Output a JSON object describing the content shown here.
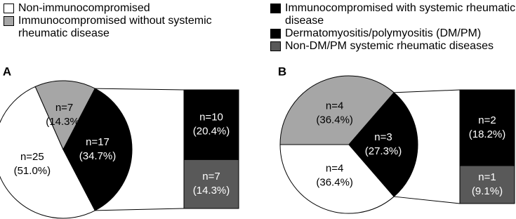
{
  "legend": [
    {
      "name": "Non-immunocompromised",
      "color": "#ffffff"
    },
    {
      "name": "Immunocompromised without systemic rheumatic disease",
      "color": "#a6a6a6"
    },
    {
      "name": "Immunocompromised with systemic rheumatic disease",
      "color": "#000000"
    },
    {
      "name": "Dermatomyositis/polymyositis (DM/PM)",
      "color": "#000000"
    },
    {
      "name": "Non-DM/PM systemic rheumatic diseases",
      "color": "#595959"
    }
  ],
  "chart_data": [
    {
      "type": "pie_of_bar",
      "panel_label": "A",
      "pie": {
        "counts": [
          25,
          7,
          17
        ],
        "count_labels": [
          "n=25",
          "n=7",
          "n=17"
        ],
        "percents": [
          51.0,
          14.3,
          34.7
        ],
        "percent_labels": [
          "(51.0%)",
          "(14.3%)",
          "(34.7%)"
        ],
        "colors": [
          "#ffffff",
          "#a6a6a6",
          "#000000"
        ]
      },
      "bar": {
        "counts": [
          10,
          7
        ],
        "count_labels": [
          "n=10",
          "n=7"
        ],
        "percents": [
          20.4,
          14.3
        ],
        "percent_labels": [
          "(20.4%)",
          "(14.3%)"
        ],
        "colors": [
          "#000000",
          "#595959"
        ]
      }
    },
    {
      "type": "pie_of_bar",
      "panel_label": "B",
      "pie": {
        "counts": [
          4,
          4,
          3
        ],
        "count_labels": [
          "n=4",
          "n=4",
          "n=3"
        ],
        "percents": [
          36.4,
          36.4,
          27.3
        ],
        "percent_labels": [
          "(36.4%)",
          "(36.4%)",
          "(27.3%)"
        ],
        "colors": [
          "#ffffff",
          "#a6a6a6",
          "#000000"
        ]
      },
      "bar": {
        "counts": [
          2,
          1
        ],
        "count_labels": [
          "n=2",
          "n=1"
        ],
        "percents": [
          18.2,
          9.1
        ],
        "percent_labels": [
          "(18.2%)",
          "(9.1%)"
        ],
        "colors": [
          "#000000",
          "#595959"
        ]
      }
    }
  ]
}
